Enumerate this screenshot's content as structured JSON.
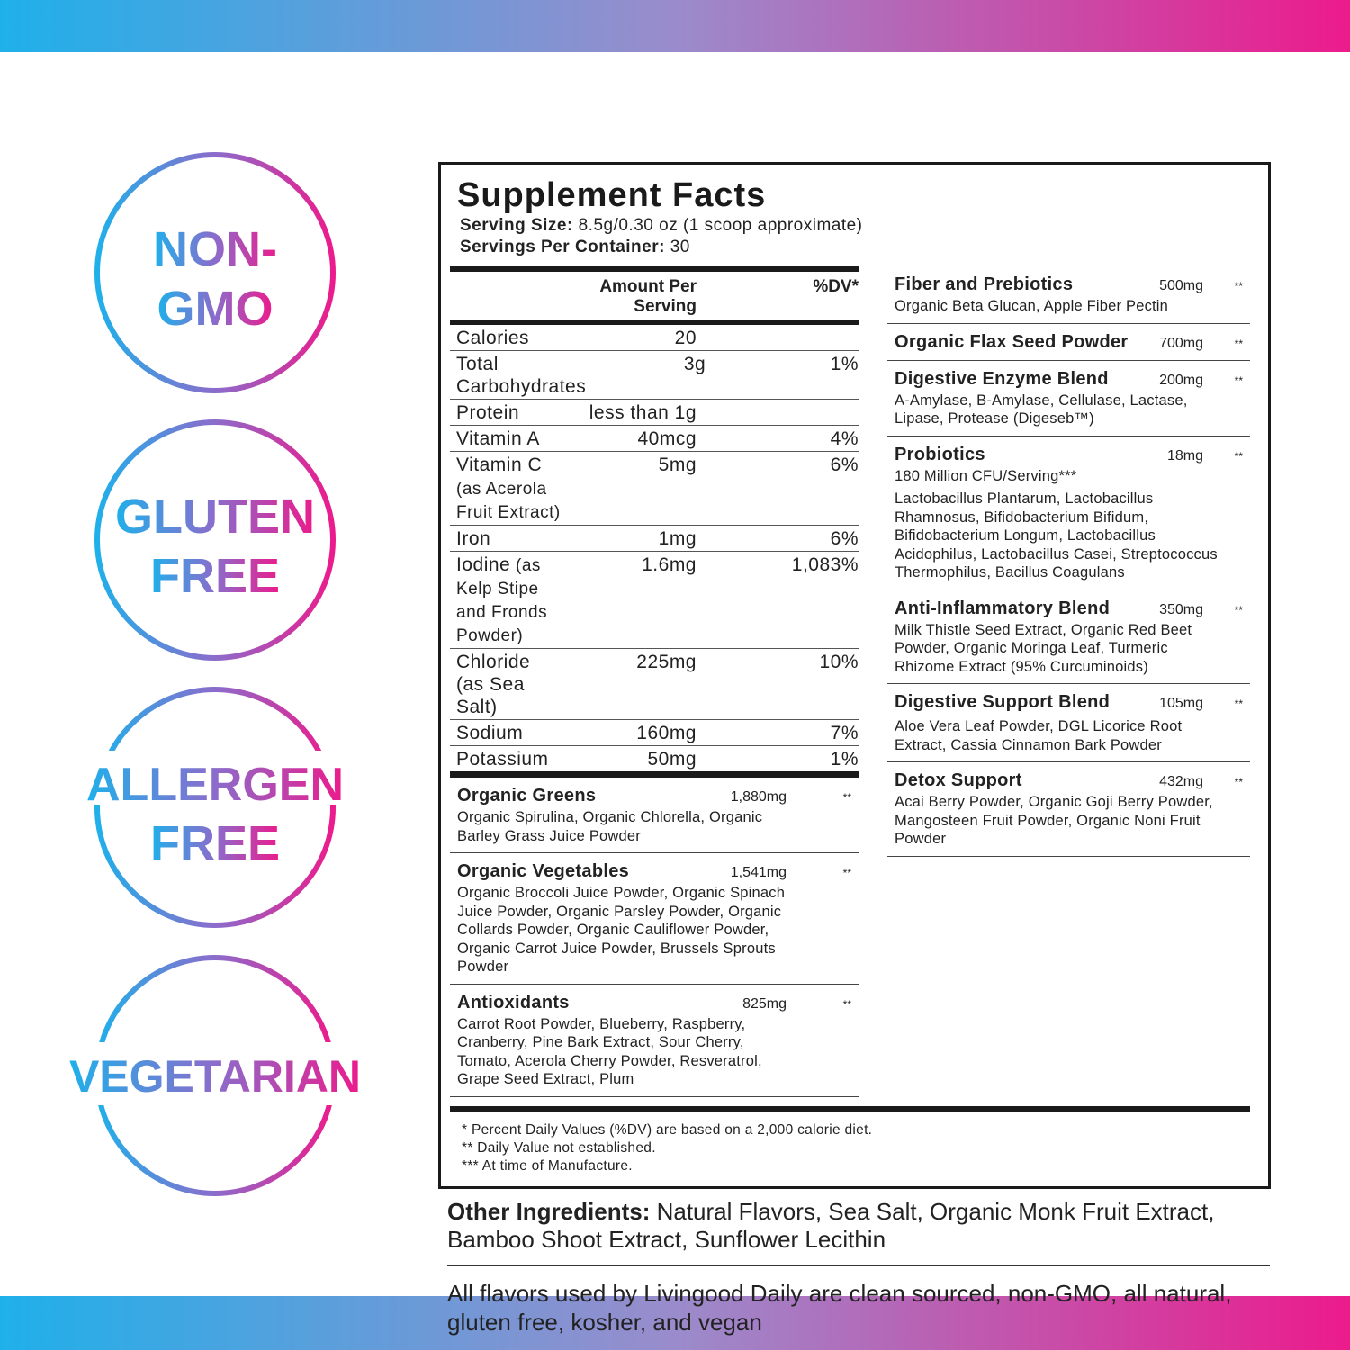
{
  "colors": {
    "gradient_start": "#1fb0ea",
    "gradient_end": "#ec1b8c"
  },
  "badges": [
    {
      "line1": "NON-",
      "line2": "GMO"
    },
    {
      "line1": "GLUTEN",
      "line2": "FREE"
    },
    {
      "line1": "ALLERGEN",
      "line2": "FREE"
    },
    {
      "line1": "VEGETARIAN",
      "line2": ""
    }
  ],
  "facts": {
    "title": "Supplement Facts",
    "serving_size_label": "Serving Size:",
    "serving_size": " 8.5g/0.30 oz (1 scoop approximate)",
    "servings_label": "Servings Per Container:",
    "servings": " 30",
    "amount_header": "Amount Per Serving",
    "dv_header": "%DV*",
    "nutrients": [
      {
        "name": "Calories",
        "note": "",
        "value": "20",
        "dv": ""
      },
      {
        "name": "Total Carbohydrates",
        "note": "",
        "value": "3g",
        "dv": "1%"
      },
      {
        "name": "Protein",
        "note": "",
        "value": "less than 1g",
        "dv": ""
      },
      {
        "name": "Vitamin A",
        "note": "",
        "value": "40mcg",
        "dv": "4%"
      },
      {
        "name": "Vitamin C",
        "note": " (as Acerola Fruit Extract)",
        "value": "5mg",
        "dv": "6%"
      },
      {
        "name": "Iron",
        "note": "",
        "value": "1mg",
        "dv": "6%"
      },
      {
        "name": "Iodine",
        "note": " (as Kelp Stipe and Fronds Powder)",
        "value": "1.6mg",
        "dv": "1,083%"
      },
      {
        "name": "Chloride (as Sea Salt)",
        "note": "",
        "value": "225mg",
        "dv": "10%"
      },
      {
        "name": "Sodium",
        "note": "",
        "value": "160mg",
        "dv": "7%"
      },
      {
        "name": "Potassium",
        "note": "",
        "value": "50mg",
        "dv": "1%"
      }
    ],
    "left_blends": [
      {
        "title": "Organic Greens",
        "amount": "1,880mg",
        "dv": "**",
        "desc": "Organic Spirulina, Organic Chlorella, Organic Barley Grass Juice Powder",
        "extra": ""
      },
      {
        "title": "Organic Vegetables",
        "amount": "1,541mg",
        "dv": "**",
        "desc": "Organic Broccoli Juice Powder, Organic Spinach Juice Powder, Organic Parsley Powder, Organic Collards Powder, Organic Cauliflower Powder, Organic Carrot Juice Powder, Brussels Sprouts Powder",
        "extra": ""
      },
      {
        "title": "Antioxidants",
        "amount": "825mg",
        "dv": "**",
        "desc": "Carrot Root Powder, Blueberry, Raspberry, Cranberry, Pine Bark Extract, Sour Cherry, Tomato, Acerola Cherry Powder, Resveratrol, Grape Seed Extract, Plum",
        "extra": ""
      }
    ],
    "right_blends": [
      {
        "title": "Fiber and Prebiotics",
        "amount": "500mg",
        "dv": "**",
        "desc": "Organic Beta Glucan, Apple Fiber Pectin",
        "extra": ""
      },
      {
        "title": "Organic Flax Seed Powder",
        "amount": "700mg",
        "dv": "**",
        "desc": "",
        "extra": ""
      },
      {
        "title": "Digestive Enzyme Blend",
        "amount": "200mg",
        "dv": "**",
        "desc": "A-Amylase, B-Amylase, Cellulase, Lactase, Lipase, Protease (Digeseb™)",
        "extra": ""
      },
      {
        "title": "Probiotics",
        "amount": "18mg",
        "dv": "**",
        "desc": "180 Million CFU/Serving***",
        "extra": "Lactobacillus Plantarum, Lactobacillus Rhamnosus, Bifidobacterium Bifidum, Bifidobacterium Longum, Lactobacillus Acidophilus, Lactobacillus Casei, Streptococcus Thermophilus, Bacillus Coagulans"
      },
      {
        "title": "Anti-Inflammatory Blend",
        "amount": "350mg",
        "dv": "**",
        "desc": "Milk Thistle Seed Extract, Organic Red Beet Powder, Organic Moringa Leaf, Turmeric Rhizome Extract (95% Curcuminoids)",
        "extra": ""
      },
      {
        "title": "Digestive Support Blend",
        "amount": "105mg",
        "dv": "**",
        "desc": "",
        "extra": "Aloe Vera Leaf Powder, DGL Licorice Root Extract, Cassia Cinnamon Bark Powder"
      },
      {
        "title": "Detox Support",
        "amount": "432mg",
        "dv": "**",
        "desc": "Acai Berry Powder, Organic Goji Berry Powder, Mangosteen Fruit Powder, Organic Noni Fruit Powder",
        "extra": ""
      }
    ],
    "footnotes": [
      "* Percent Daily Values (%DV) are based on a 2,000 calorie diet.",
      "** Daily Value not established.",
      "*** At time of Manufacture."
    ]
  },
  "other_ingredients": {
    "label": "Other Ingredients:",
    "text": " Natural Flavors, Sea Salt, Organic Monk Fruit Extract, Bamboo Shoot Extract, Sunflower Lecithin"
  },
  "clean_statement": "All flavors used by Livingood Daily are clean sourced, non-GMO, all natural, gluten free, kosher, and vegan"
}
